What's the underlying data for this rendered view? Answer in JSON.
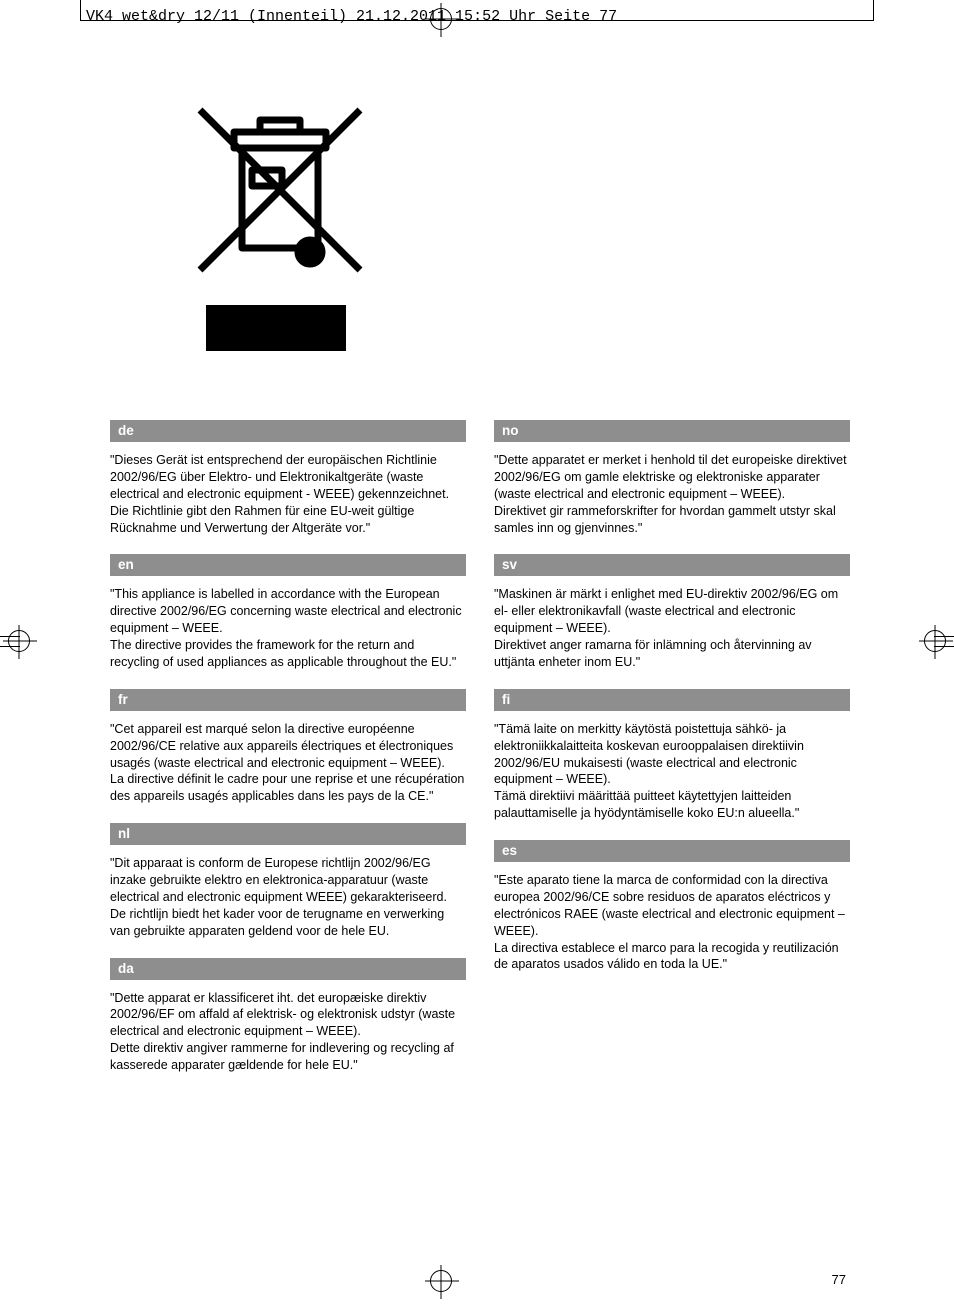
{
  "header": {
    "text": "VK4 wet&dry 12/11 (Innenteil)  21.12.2011  15:52 Uhr  Seite 77"
  },
  "page_number": "77",
  "left_column": [
    {
      "code": "de",
      "text": "\"Dieses Gerät ist entsprechend der europäischen Richtlinie 2002/96/EG über Elektro- und Elektronikaltgeräte (waste electrical and electronic equipment - WEEE) gekennzeichnet.\nDie Richtlinie gibt den Rahmen für eine EU-weit gültige Rücknahme und Verwertung der Altgeräte vor.\""
    },
    {
      "code": "en",
      "text": "\"This appliance is labelled in accordance with the European directive 2002/96/EG concerning waste electrical and electronic equipment – WEEE.\nThe directive provides the framework for the return and recycling of used appliances as applicable throughout the EU.\""
    },
    {
      "code": "fr",
      "text": "\"Cet appareil est marqué selon la directive européenne 2002/96/CE relative aux appareils électriques et électroniques usagés (waste electrical and electronic equipment – WEEE).\nLa directive définit le cadre pour une reprise et une récupération des appareils usagés applicables dans les pays de la CE.\""
    },
    {
      "code": "nl",
      "text": "\"Dit apparaat is conform de Europese richtlijn 2002/96/EG inzake gebruikte elektro en elektronica-apparatuur (waste electrical and electronic equipment WEEE) gekarakteriseerd.\nDe richtlijn biedt het kader voor de terugname en verwerking van gebruikte apparaten geldend voor de hele EU."
    },
    {
      "code": "da",
      "text": "\"Dette apparat er klassificeret iht. det europæiske direktiv 2002/96/EF om affald af elektrisk- og elektronisk udstyr (waste electrical and electronic equipment – WEEE).\nDette direktiv angiver rammerne for indlevering og recycling af kasserede apparater gældende for hele EU.\""
    }
  ],
  "right_column": [
    {
      "code": "no",
      "text": "\"Dette apparatet er merket i henhold til det europeiske direktivet 2002/96/EG om gamle elektriske og elektroniske apparater (waste electrical and electronic equipment – WEEE).\nDirektivet gir rammeforskrifter for hvordan gammelt utstyr skal samles inn og gjenvinnes.\""
    },
    {
      "code": "sv",
      "text": "\"Maskinen är märkt i enlighet med EU-direktiv 2002/96/EG om el- eller elektronikavfall (waste electrical and electronic equipment – WEEE).\nDirektivet anger ramarna för inlämning och återvinning av uttjänta enheter inom EU.\""
    },
    {
      "code": "fi",
      "text": "\"Tämä laite on merkitty käytöstä poistettuja sähkö- ja elektroniikkalaitteita koskevan eurooppalaisen direktiivin 2002/96/EU mukaisesti (waste electrical and electronic equipment – WEEE).\nTämä direktiivi määrittää puitteet käytettyjen laitteiden palauttamiselle ja hyödyntämiselle koko EU:n alueella.\""
    },
    {
      "code": "es",
      "text": "\"Este aparato tiene la marca de conformidad con la directiva europea 2002/96/CE sobre residuos de aparatos eléctricos y electrónicos RAEE (waste electrical and electronic equipment – WEEE).\nLa directiva establece el marco para la recogida y reutilización de aparatos usados válido en toda la UE.\""
    }
  ]
}
